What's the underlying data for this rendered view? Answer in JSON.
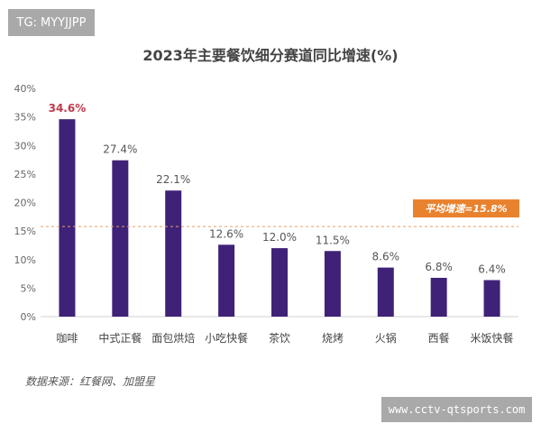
{
  "watermark_top": "TG: MYYJJPP",
  "watermark_bottom": "www.cctv-qtsports.com",
  "source": "数据来源：红餐网、加盟星",
  "chart_data": {
    "type": "bar",
    "title": "2023年主要餐饮细分赛道同比增速(%)",
    "categories": [
      "咖啡",
      "中式正餐",
      "面包烘焙",
      "小吃快餐",
      "茶饮",
      "烧烤",
      "火锅",
      "西餐",
      "米饭快餐"
    ],
    "values": [
      34.6,
      27.4,
      22.1,
      12.6,
      12.0,
      11.5,
      8.6,
      6.8,
      6.4
    ],
    "data_labels": [
      "34.6%",
      "27.4%",
      "22.1%",
      "12.6%",
      "12.0%",
      "11.5%",
      "8.6%",
      "6.8%",
      "6.4%"
    ],
    "highlight_index": 0,
    "ylim": [
      0,
      40
    ],
    "yticks": [
      "0%",
      "5%",
      "10%",
      "15%",
      "20%",
      "25%",
      "30%",
      "35%",
      "40%"
    ],
    "average": {
      "value": 15.8,
      "label": "平均增速=15.8%"
    },
    "grid": false,
    "colors": {
      "bar": "#3f2278",
      "highlight_label": "#c0394b",
      "average_line": "#e8a060",
      "average_box": "#e8822e"
    }
  }
}
